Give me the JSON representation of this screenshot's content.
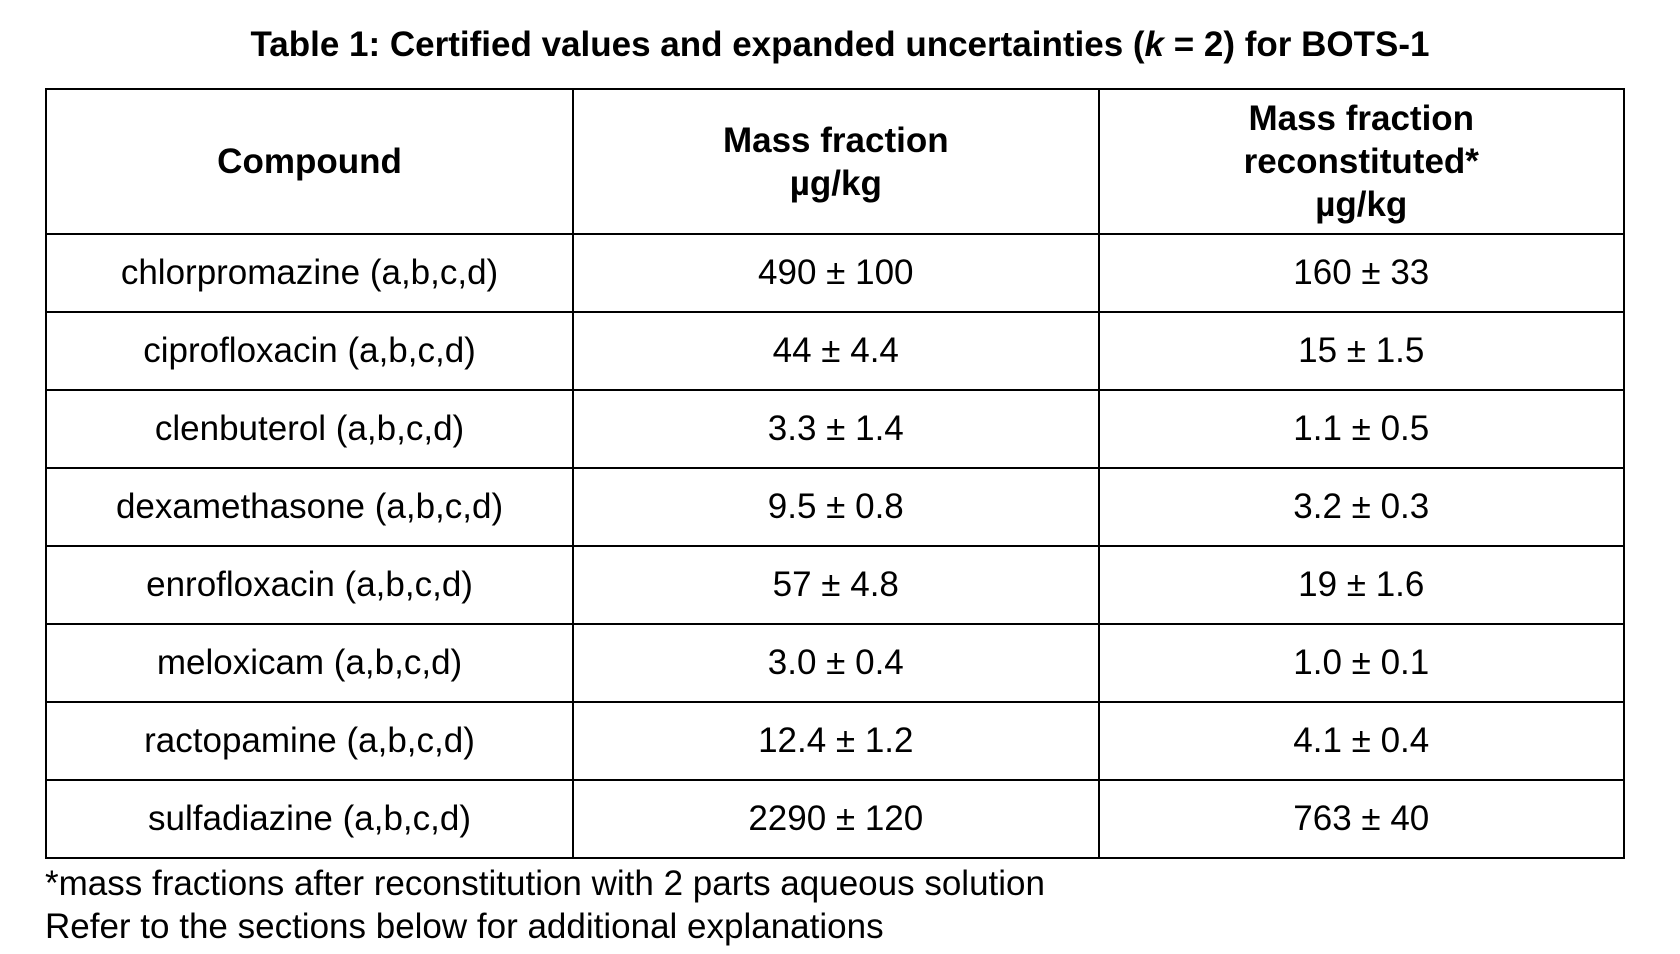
{
  "caption": {
    "prefix": "Table 1: Certified values and expanded uncertainties (",
    "k": "k",
    "suffix": " = 2) for BOTS-1"
  },
  "table": {
    "headers": {
      "compound": "Compound",
      "mass_fraction": [
        "Mass fraction",
        "µg/kg"
      ],
      "mass_fraction_reconstituted": [
        "Mass fraction",
        "reconstituted*",
        "µg/kg"
      ]
    },
    "rows": [
      {
        "compound": "chlorpromazine (a,b,c,d)",
        "mass_fraction": "490 ± 100",
        "reconstituted": "160 ± 33"
      },
      {
        "compound": "ciprofloxacin (a,b,c,d)",
        "mass_fraction": "44 ± 4.4",
        "reconstituted": "15 ± 1.5"
      },
      {
        "compound": "clenbuterol (a,b,c,d)",
        "mass_fraction": "3.3 ± 1.4",
        "reconstituted": "1.1 ± 0.5"
      },
      {
        "compound": "dexamethasone (a,b,c,d)",
        "mass_fraction": "9.5 ± 0.8",
        "reconstituted": "3.2 ± 0.3"
      },
      {
        "compound": "enrofloxacin (a,b,c,d)",
        "mass_fraction": "57 ± 4.8",
        "reconstituted": "19 ± 1.6"
      },
      {
        "compound": "meloxicam (a,b,c,d)",
        "mass_fraction": "3.0 ± 0.4",
        "reconstituted": "1.0 ± 0.1"
      },
      {
        "compound": "ractopamine (a,b,c,d)",
        "mass_fraction": "12.4 ± 1.2",
        "reconstituted": "4.1 ± 0.4"
      },
      {
        "compound": "sulfadiazine (a,b,c,d)",
        "mass_fraction": "2290 ± 120",
        "reconstituted": "763 ± 40"
      }
    ]
  },
  "notes": {
    "footnote": "*mass fractions after reconstitution with 2 parts aqueous solution",
    "refer": "Refer to the sections below for additional explanations"
  }
}
